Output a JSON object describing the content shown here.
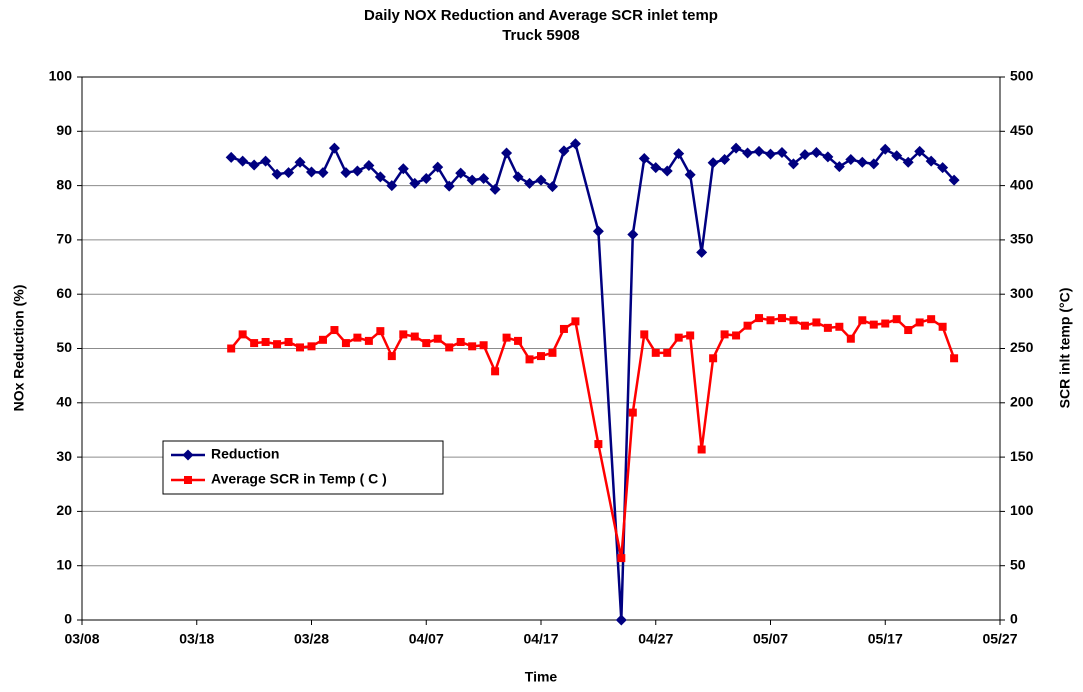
{
  "chart_data": {
    "type": "line",
    "title": "Daily NOX Reduction and Average SCR inlet temp",
    "subtitle": "Truck 5908",
    "x_label": "Time",
    "y_label": "NOx Reduction (%)",
    "y2_label": "SCR inlt temp (°C)",
    "x": [
      "03/21",
      "03/22",
      "03/23",
      "03/24",
      "03/25",
      "03/26",
      "03/27",
      "03/28",
      "03/29",
      "03/30",
      "03/31",
      "04/01",
      "04/02",
      "04/03",
      "04/04",
      "04/05",
      "04/06",
      "04/07",
      "04/08",
      "04/09",
      "04/10",
      "04/11",
      "04/12",
      "04/13",
      "04/14",
      "04/15",
      "04/16",
      "04/17",
      "04/18",
      "04/19",
      "04/20",
      "04/22",
      "04/24",
      "04/25",
      "04/26",
      "04/27",
      "04/28",
      "04/29",
      "04/30",
      "05/01",
      "05/02",
      "05/03",
      "05/04",
      "05/05",
      "05/06",
      "05/07",
      "05/08",
      "05/09",
      "05/10",
      "05/11",
      "05/12",
      "05/13",
      "05/14",
      "05/15",
      "05/16",
      "05/17",
      "05/18",
      "05/19",
      "05/20",
      "05/21",
      "05/22",
      "05/23"
    ],
    "xlim": [
      "03/08",
      "05/27"
    ],
    "xticks": [
      "03/08",
      "03/18",
      "03/28",
      "04/07",
      "04/17",
      "04/27",
      "05/07",
      "05/17",
      "05/27"
    ],
    "ylim": [
      0,
      100
    ],
    "yticks": [
      0,
      10,
      20,
      30,
      40,
      50,
      60,
      70,
      80,
      90,
      100
    ],
    "y2lim": [
      0,
      500
    ],
    "y2ticks": [
      0,
      50,
      100,
      150,
      200,
      250,
      300,
      350,
      400,
      450,
      500
    ],
    "grid": true,
    "legend": "left",
    "series": [
      {
        "name": "Reduction",
        "color": "#000080",
        "marker": "diamond",
        "values": [
          85.2,
          84.5,
          83.8,
          84.5,
          82.1,
          82.4,
          84.3,
          82.5,
          82.4,
          86.9,
          82.4,
          82.7,
          83.7,
          81.6,
          80.0,
          83.1,
          80.4,
          81.3,
          83.4,
          79.9,
          82.3,
          81.0,
          81.3,
          79.3,
          86.0,
          81.6,
          80.4,
          81.0,
          79.8,
          86.4,
          87.7,
          71.6,
          0,
          71.0,
          85.0,
          83.3,
          82.7,
          85.9,
          82.0,
          67.7,
          84.2,
          84.8,
          86.9,
          86.0,
          86.3,
          85.8,
          86.1,
          84.0,
          85.7,
          86.1,
          85.3,
          83.5,
          84.8,
          84.3,
          84.0,
          86.7,
          85.5,
          84.3,
          86.3,
          84.5,
          83.3,
          81.0
        ]
      },
      {
        "name": "Average SCR in Temp ( C )",
        "color": "#ff0000",
        "marker": "square",
        "axis": "y2",
        "values": [
          250,
          263,
          255,
          256,
          254,
          256,
          251,
          252,
          258,
          267,
          255,
          260,
          257,
          266,
          243,
          263,
          261,
          255,
          259,
          251,
          256,
          252,
          253,
          229,
          260,
          257,
          240,
          243,
          246,
          268,
          275,
          162,
          57,
          191,
          263,
          246,
          246,
          260,
          262,
          157,
          241,
          263,
          262,
          271,
          278,
          276,
          278,
          276,
          271,
          274,
          269,
          270,
          259,
          276,
          272,
          273,
          277,
          267,
          274,
          277,
          270,
          241
        ]
      }
    ]
  }
}
